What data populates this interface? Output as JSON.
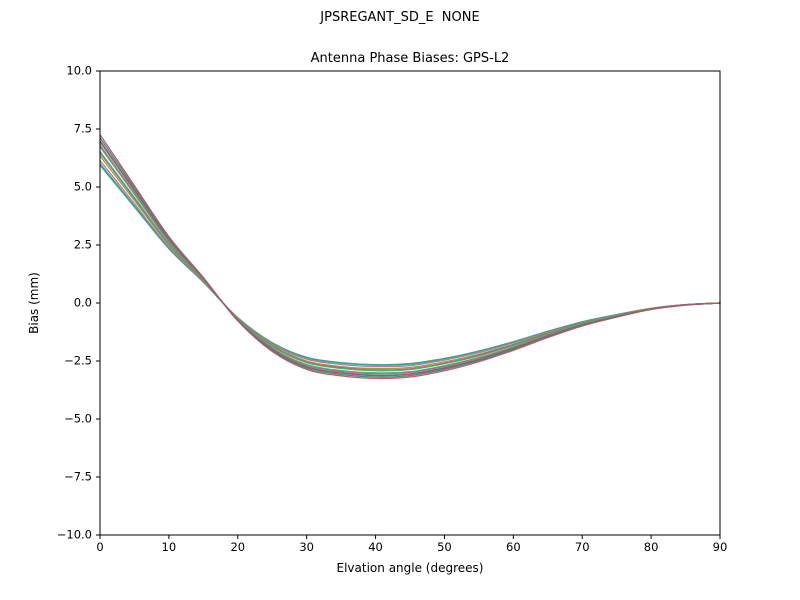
{
  "figure": {
    "title": "JPSREGANT_SD_E  NONE",
    "subtitle": "Antenna Phase Biases: GPS-L2",
    "xlabel": "Elvation angle (degrees)",
    "ylabel": "Bias (mm)"
  },
  "chart_data": {
    "type": "line",
    "suptitle": "JPSREGANT_SD_E  NONE",
    "title": "Antenna Phase Biases: GPS-L2",
    "xlabel": "Elvation angle (degrees)",
    "ylabel": "Bias (mm)",
    "xlim": [
      0,
      90
    ],
    "ylim": [
      -10,
      10
    ],
    "xticks": [
      0,
      10,
      20,
      30,
      40,
      50,
      60,
      70,
      80,
      90
    ],
    "xticklabels": [
      "0",
      "10",
      "20",
      "30",
      "40",
      "50",
      "60",
      "70",
      "80",
      "90"
    ],
    "yticks": [
      10.0,
      7.5,
      5.0,
      2.5,
      0.0,
      -2.5,
      -5.0,
      -7.5,
      -10.0
    ],
    "yticklabels": [
      "10.0",
      "7.5",
      "5.0",
      "2.5",
      "0.0",
      "−2.5",
      "−5.0",
      "−7.5",
      "−10.0"
    ],
    "grid": false,
    "legend": "none",
    "line_width": 1.3,
    "x": [
      0,
      5,
      10,
      15,
      20,
      25,
      30,
      35,
      40,
      45,
      50,
      55,
      60,
      65,
      70,
      75,
      80,
      85,
      90
    ],
    "series": [
      {
        "name": "series-01",
        "color": "#3f9b5a",
        "values": [
          5.94,
          4.14,
          2.34,
          0.9,
          -0.63,
          -1.71,
          -2.34,
          -2.57,
          -2.66,
          -2.61,
          -2.39,
          -2.07,
          -1.67,
          -1.22,
          -0.81,
          -0.5,
          -0.23,
          -0.07,
          0.0
        ]
      },
      {
        "name": "series-02",
        "color": "#2aa8a0",
        "values": [
          6.01,
          4.19,
          2.37,
          0.91,
          -0.64,
          -1.73,
          -2.37,
          -2.59,
          -2.68,
          -2.64,
          -2.41,
          -2.09,
          -1.68,
          -1.23,
          -0.82,
          -0.5,
          -0.23,
          -0.07,
          0.0
        ]
      },
      {
        "name": "series-03",
        "color": "#c9699e",
        "values": [
          6.14,
          4.28,
          2.42,
          0.93,
          -0.65,
          -1.77,
          -2.42,
          -2.65,
          -2.74,
          -2.7,
          -2.46,
          -2.14,
          -1.72,
          -1.26,
          -0.84,
          -0.51,
          -0.23,
          -0.07,
          0.0
        ]
      },
      {
        "name": "series-04",
        "color": "#8f9a34",
        "values": [
          6.34,
          4.42,
          2.5,
          0.96,
          -0.67,
          -1.82,
          -2.5,
          -2.74,
          -2.83,
          -2.78,
          -2.54,
          -2.21,
          -1.78,
          -1.3,
          -0.86,
          -0.53,
          -0.24,
          -0.08,
          0.0
        ]
      },
      {
        "name": "series-05",
        "color": "#a3586b",
        "values": [
          6.47,
          4.51,
          2.55,
          0.98,
          -0.69,
          -1.86,
          -2.55,
          -2.79,
          -2.89,
          -2.84,
          -2.6,
          -2.25,
          -1.81,
          -1.32,
          -0.88,
          -0.54,
          -0.25,
          -0.08,
          0.0
        ]
      },
      {
        "name": "series-06",
        "color": "#49b06a",
        "values": [
          6.53,
          4.55,
          2.57,
          0.99,
          -0.69,
          -1.88,
          -2.57,
          -2.82,
          -2.92,
          -2.87,
          -2.62,
          -2.28,
          -1.83,
          -1.34,
          -0.89,
          -0.54,
          -0.25,
          -0.08,
          0.0
        ]
      },
      {
        "name": "series-07",
        "color": "#35b5b0",
        "values": [
          6.73,
          4.69,
          2.65,
          1.02,
          -0.71,
          -1.94,
          -2.65,
          -2.91,
          -3.01,
          -2.96,
          -2.7,
          -2.35,
          -1.89,
          -1.38,
          -0.92,
          -0.56,
          -0.26,
          -0.08,
          0.0
        ]
      },
      {
        "name": "series-08",
        "color": "#b95f88",
        "values": [
          6.8,
          4.74,
          2.68,
          1.03,
          -0.72,
          -1.96,
          -2.68,
          -2.94,
          -3.04,
          -2.99,
          -2.73,
          -2.37,
          -1.91,
          -1.39,
          -0.93,
          -0.57,
          -0.26,
          -0.08,
          0.0
        ]
      },
      {
        "name": "series-09",
        "color": "#6f9e3f",
        "values": [
          6.93,
          4.83,
          2.73,
          1.05,
          -0.74,
          -2.0,
          -2.73,
          -2.99,
          -3.1,
          -3.05,
          -2.78,
          -2.42,
          -1.94,
          -1.42,
          -0.95,
          -0.58,
          -0.26,
          -0.08,
          0.0
        ]
      },
      {
        "name": "series-10",
        "color": "#96527a",
        "values": [
          7.0,
          4.88,
          2.76,
          1.06,
          -0.74,
          -2.01,
          -2.76,
          -3.02,
          -3.13,
          -3.07,
          -2.81,
          -2.44,
          -1.96,
          -1.43,
          -0.95,
          -0.58,
          -0.27,
          -0.08,
          0.0
        ]
      },
      {
        "name": "series-11",
        "color": "#2f8f6f",
        "values": [
          7.13,
          4.97,
          2.81,
          1.08,
          -0.76,
          -2.05,
          -2.81,
          -3.08,
          -3.19,
          -3.13,
          -2.86,
          -2.48,
          -2.0,
          -1.46,
          -0.97,
          -0.59,
          -0.27,
          -0.09,
          0.0
        ]
      },
      {
        "name": "series-12",
        "color": "#b4556a",
        "values": [
          7.26,
          5.06,
          2.86,
          1.1,
          -0.77,
          -2.09,
          -2.86,
          -3.14,
          -3.25,
          -3.19,
          -2.92,
          -2.53,
          -2.04,
          -1.49,
          -0.99,
          -0.61,
          -0.28,
          -0.09,
          0.0
        ]
      }
    ]
  }
}
